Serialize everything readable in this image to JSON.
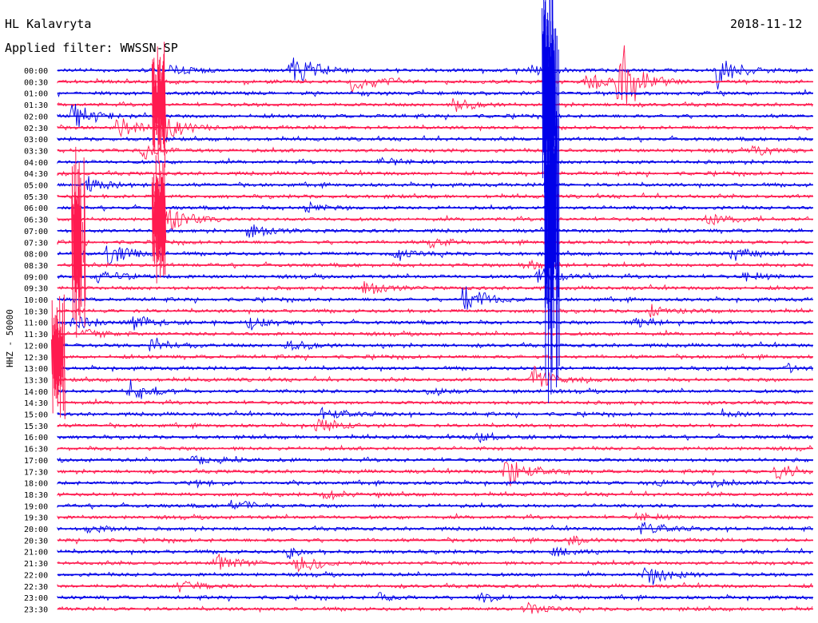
{
  "header": {
    "station": "HL Kalavryta",
    "date": "2018-11-12",
    "filter": "Applied filter: WWSSN-SP",
    "channel": "HHZ - 50000"
  },
  "colors": {
    "even_trace": "#0000e8",
    "odd_trace": "#ff1a4f",
    "background": "#ffffff",
    "text": "#000000"
  },
  "chart_data": {
    "type": "line",
    "ylabel": "HHZ - 50000",
    "title": "HL Kalavryta",
    "subtitle": "Applied filter: WWSSN-SP",
    "row_labels": [
      "00:00",
      "00:30",
      "01:00",
      "01:30",
      "02:00",
      "02:30",
      "03:00",
      "03:30",
      "04:00",
      "04:30",
      "05:00",
      "05:30",
      "06:00",
      "06:30",
      "07:00",
      "07:30",
      "08:00",
      "08:30",
      "09:00",
      "09:30",
      "10:00",
      "10:30",
      "11:00",
      "11:30",
      "12:00",
      "12:30",
      "13:00",
      "13:30",
      "14:00",
      "14:30",
      "15:00",
      "15:30",
      "16:00",
      "16:30",
      "17:00",
      "17:30",
      "18:00",
      "18:30",
      "19:00",
      "19:30",
      "20:00",
      "20:30",
      "21:00",
      "21:30",
      "22:00",
      "22:30",
      "23:00",
      "23:30"
    ],
    "series": [
      {
        "color": "#0000e8",
        "rows": "even"
      },
      {
        "color": "#ff1a4f",
        "rows": "odd"
      }
    ],
    "minutes_per_row": 30,
    "events": [
      {
        "row": 0,
        "minute": 4.5,
        "amplitude": 1.2
      },
      {
        "row": 0,
        "minute": 9.3,
        "amplitude": 4.5
      },
      {
        "row": 0,
        "minute": 18.8,
        "amplitude": 1.4
      },
      {
        "row": 0,
        "minute": 26.2,
        "amplitude": 4.0
      },
      {
        "row": 1,
        "minute": 21.0,
        "amplitude": 2.0
      },
      {
        "row": 1,
        "minute": 22.3,
        "amplitude": 9.0
      },
      {
        "row": 1,
        "minute": 11.7,
        "amplitude": 2.8
      },
      {
        "row": 3,
        "minute": 15.7,
        "amplitude": 1.6
      },
      {
        "row": 4,
        "minute": 0.6,
        "amplitude": 3.0
      },
      {
        "row": 5,
        "minute": 2.4,
        "amplitude": 2.2
      },
      {
        "row": 5,
        "minute": 4.3,
        "amplitude": 3.6
      },
      {
        "row": 7,
        "minute": 3.4,
        "amplitude": 1.8
      },
      {
        "row": 7,
        "minute": 27.6,
        "amplitude": 1.2
      },
      {
        "row": 8,
        "minute": 12.9,
        "amplitude": 1.0
      },
      {
        "row": 10,
        "minute": 1.2,
        "amplitude": 2.5
      },
      {
        "row": 12,
        "minute": 9.9,
        "amplitude": 1.0
      },
      {
        "row": 13,
        "minute": 4.2,
        "amplitude": 3.5
      },
      {
        "row": 13,
        "minute": 25.8,
        "amplitude": 1.2
      },
      {
        "row": 14,
        "minute": 7.6,
        "amplitude": 1.5
      },
      {
        "row": 15,
        "minute": 14.8,
        "amplitude": 1.2
      },
      {
        "row": 16,
        "minute": 2.0,
        "amplitude": 3.2
      },
      {
        "row": 16,
        "minute": 13.4,
        "amplitude": 1.0
      },
      {
        "row": 16,
        "minute": 26.8,
        "amplitude": 1.5
      },
      {
        "row": 17,
        "minute": 18.4,
        "amplitude": 1.4
      },
      {
        "row": 18,
        "minute": 1.6,
        "amplitude": 1.6
      },
      {
        "row": 18,
        "minute": 19.1,
        "amplitude": 1.6
      },
      {
        "row": 18,
        "minute": 27.2,
        "amplitude": 1.2
      },
      {
        "row": 19,
        "minute": 12.2,
        "amplitude": 1.5
      },
      {
        "row": 20,
        "minute": 16.1,
        "amplitude": 3.5
      },
      {
        "row": 21,
        "minute": 23.5,
        "amplitude": 1.4
      },
      {
        "row": 22,
        "minute": 0.6,
        "amplitude": 1.5
      },
      {
        "row": 22,
        "minute": 3.0,
        "amplitude": 1.8
      },
      {
        "row": 22,
        "minute": 7.6,
        "amplitude": 1.5
      },
      {
        "row": 22,
        "minute": 22.9,
        "amplitude": 1.2
      },
      {
        "row": 23,
        "minute": 1.0,
        "amplitude": 1.4
      },
      {
        "row": 24,
        "minute": 3.7,
        "amplitude": 1.8
      },
      {
        "row": 24,
        "minute": 9.1,
        "amplitude": 1.5
      },
      {
        "row": 26,
        "minute": 29.0,
        "amplitude": 0.8
      },
      {
        "row": 27,
        "minute": 18.9,
        "amplitude": 3.0
      },
      {
        "row": 28,
        "minute": 14.6,
        "amplitude": 1.0
      },
      {
        "row": 28,
        "minute": 2.9,
        "amplitude": 2.4
      },
      {
        "row": 30,
        "minute": 10.5,
        "amplitude": 1.5
      },
      {
        "row": 30,
        "minute": 26.4,
        "amplitude": 1.0
      },
      {
        "row": 31,
        "minute": 10.3,
        "amplitude": 1.6
      },
      {
        "row": 32,
        "minute": 16.6,
        "amplitude": 1.2
      },
      {
        "row": 34,
        "minute": 5.4,
        "amplitude": 1.0
      },
      {
        "row": 35,
        "minute": 17.8,
        "amplitude": 3.5
      },
      {
        "row": 35,
        "minute": 28.5,
        "amplitude": 1.8
      },
      {
        "row": 36,
        "minute": 5.4,
        "amplitude": 1.0
      },
      {
        "row": 36,
        "minute": 23.5,
        "amplitude": 1.0
      },
      {
        "row": 36,
        "minute": 26.0,
        "amplitude": 1.0
      },
      {
        "row": 37,
        "minute": 10.6,
        "amplitude": 1.2
      },
      {
        "row": 38,
        "minute": 6.9,
        "amplitude": 1.2
      },
      {
        "row": 39,
        "minute": 23.0,
        "amplitude": 1.0
      },
      {
        "row": 40,
        "minute": 1.2,
        "amplitude": 1.0
      },
      {
        "row": 40,
        "minute": 23.2,
        "amplitude": 1.6
      },
      {
        "row": 41,
        "minute": 20.3,
        "amplitude": 1.0
      },
      {
        "row": 42,
        "minute": 9.1,
        "amplitude": 1.4
      },
      {
        "row": 42,
        "minute": 19.7,
        "amplitude": 1.0
      },
      {
        "row": 43,
        "minute": 6.3,
        "amplitude": 2.0
      },
      {
        "row": 43,
        "minute": 9.5,
        "amplitude": 2.0
      },
      {
        "row": 44,
        "minute": 23.3,
        "amplitude": 3.0
      },
      {
        "row": 45,
        "minute": 4.8,
        "amplitude": 2.0
      },
      {
        "row": 46,
        "minute": 12.8,
        "amplitude": 1.0
      },
      {
        "row": 46,
        "minute": 16.8,
        "amplitude": 1.0
      },
      {
        "row": 47,
        "minute": 18.5,
        "amplitude": 1.2
      }
    ],
    "large_events": [
      {
        "row": 2,
        "minute": 19.5,
        "amplitude": 12
      },
      {
        "row": 12,
        "minute": 19.6,
        "amplitude": 18
      },
      {
        "row": 15,
        "minute": 0.8,
        "amplitude": 9
      },
      {
        "row": 13,
        "minute": 4.0,
        "amplitude": 7
      },
      {
        "row": 3,
        "minute": 4.0,
        "amplitude": 6
      },
      {
        "row": 25,
        "minute": 0.0,
        "amplitude": 6
      }
    ]
  }
}
